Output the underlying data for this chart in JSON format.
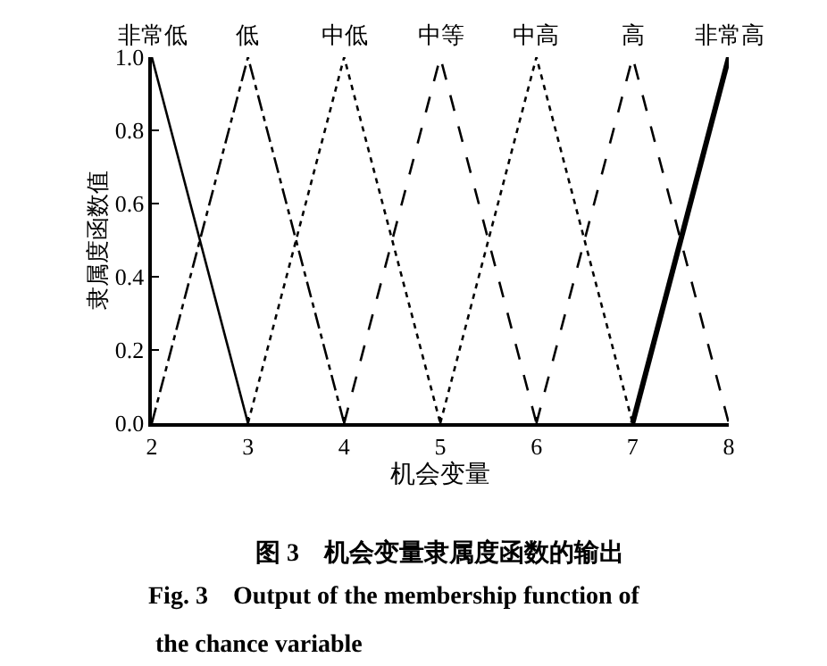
{
  "chart_data": {
    "type": "line",
    "xlabel": "机会变量",
    "ylabel": "隶属度函数值",
    "xlim": [
      2,
      8
    ],
    "ylim": [
      0,
      1.0
    ],
    "xticks": [
      2,
      3,
      4,
      5,
      6,
      7,
      8
    ],
    "yticks": [
      {
        "value": 0,
        "label": "0.0"
      },
      {
        "value": 0.2,
        "label": "0.2"
      },
      {
        "value": 0.4,
        "label": "0.4"
      },
      {
        "value": 0.6,
        "label": "0.6"
      },
      {
        "value": 0.8,
        "label": "0.8"
      },
      {
        "value": 1,
        "label": "1.0"
      }
    ],
    "legend": false,
    "marker": "none",
    "series": [
      {
        "name": "非常低",
        "color": "#000000",
        "x": [
          2,
          3
        ],
        "values": [
          1,
          0
        ],
        "line_style": "solid"
      },
      {
        "name": "低",
        "color": "#000000",
        "x": [
          2,
          3,
          4
        ],
        "values": [
          0,
          1,
          0
        ],
        "line_style": "dashdot"
      },
      {
        "name": "中低",
        "color": "#000000",
        "x": [
          3,
          4,
          5
        ],
        "values": [
          0,
          1,
          0
        ],
        "line_style": "dotted"
      },
      {
        "name": "中等",
        "color": "#000000",
        "x": [
          4,
          5,
          6
        ],
        "values": [
          0,
          1,
          0
        ],
        "line_style": "dashed"
      },
      {
        "name": "中高",
        "color": "#000000",
        "x": [
          5,
          6,
          7
        ],
        "values": [
          0,
          1,
          0
        ],
        "line_style": "dotted"
      },
      {
        "name": "高",
        "color": "#000000",
        "x": [
          6,
          7,
          8
        ],
        "values": [
          0,
          1,
          0
        ],
        "line_style": "dashed"
      },
      {
        "name": "非常高",
        "color": "#000000",
        "x": [
          7,
          8
        ],
        "values": [
          0,
          1
        ],
        "line_style": "solid"
      }
    ],
    "annotations": [
      "图 3　机会变量隶属度函数的输出",
      "Fig. 3　Output of the membership function of",
      "the chance variable"
    ]
  }
}
